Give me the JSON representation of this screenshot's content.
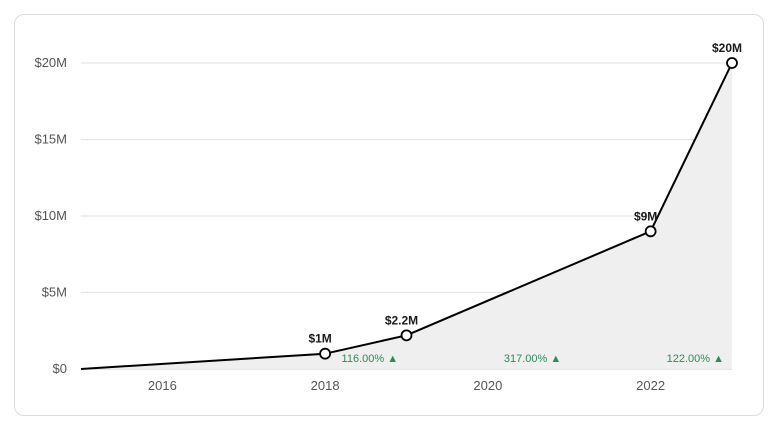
{
  "chart_data": {
    "type": "area",
    "title": "",
    "xlabel": "",
    "ylabel": "",
    "x": [
      2015,
      2018,
      2019,
      2022,
      2023
    ],
    "values": [
      0,
      1,
      2.2,
      9,
      20
    ],
    "unit": "$M",
    "point_labels": [
      {
        "x": 2018,
        "label": "$1M"
      },
      {
        "x": 2019,
        "label": "$2.2M"
      },
      {
        "x": 2022,
        "label": "$9M"
      },
      {
        "x": 2023,
        "label": "$20M"
      }
    ],
    "growth_labels": [
      {
        "x": 2018.5,
        "label": "116.00% ▲"
      },
      {
        "x": 2020.5,
        "label": "317.00% ▲"
      },
      {
        "x": 2022.5,
        "label": "122.00% ▲"
      }
    ],
    "xlim": [
      2015,
      2023
    ],
    "ylim": [
      0,
      20
    ],
    "y_ticks": [
      {
        "value": 0,
        "label": "$0"
      },
      {
        "value": 5,
        "label": "$5M"
      },
      {
        "value": 10,
        "label": "$10M"
      },
      {
        "value": 15,
        "label": "$15M"
      },
      {
        "value": 20,
        "label": "$20M"
      }
    ],
    "x_ticks": [
      {
        "value": 2016,
        "label": "2016"
      },
      {
        "value": 2018,
        "label": "2018"
      },
      {
        "value": 2020,
        "label": "2020"
      },
      {
        "value": 2022,
        "label": "2022"
      }
    ],
    "grid": true,
    "legend": "none"
  },
  "colors": {
    "line": "#000000",
    "area": "#efefef",
    "growth": "#2e8b57",
    "grid": "#e2e2e2"
  }
}
